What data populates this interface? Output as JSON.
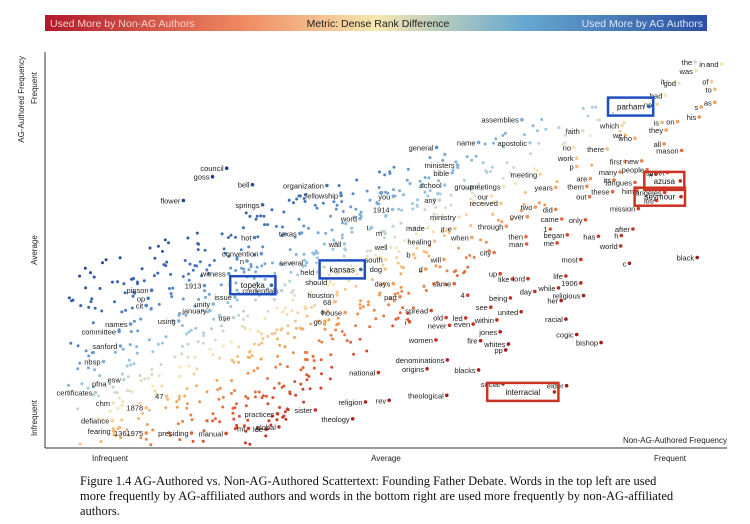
{
  "legend_bar": {
    "left_label": "Used More by Non-AG Authors",
    "center_label": "Metric: Dense Rank Difference",
    "right_label": "Used More by AG Authors",
    "colors": [
      "#b2182b",
      "#ef8a62",
      "#f7e8b0",
      "#67a9cf",
      "#2b4fa3"
    ]
  },
  "caption": "Figure 1.4 AG-Authored vs. Non-AG-Authored Scattertext: Founding Father Debate. Words in the top left are used more frequently by AG-affiliated authors and words in the bottom right are used more frequently by non-AG-affiliated authors.",
  "chart_data": {
    "type": "scatter",
    "xlabel": "Non-AG-Authored Frequency",
    "ylabel": "AG-Authored Frequency",
    "x_ticks": [
      "Infrequent",
      "Average",
      "Frequent"
    ],
    "y_ticks": [
      "Infrequent",
      "Average",
      "Frequent"
    ],
    "xlim": [
      0,
      1
    ],
    "ylim": [
      0,
      1
    ],
    "color_scale": "diverging red (non-AG) to blue (AG)",
    "highlight_colors": {
      "ag": "#1f4fbf",
      "non_ag": "#cc3322"
    },
    "highlighted_terms": [
      {
        "term": "parham",
        "x": 0.888,
        "y": 0.879,
        "side": "ag"
      },
      {
        "term": "kansas",
        "x": 0.462,
        "y": 0.456,
        "side": "ag"
      },
      {
        "term": "topeka",
        "x": 0.33,
        "y": 0.415,
        "side": "ag"
      },
      {
        "term": "azusa",
        "x": 0.934,
        "y": 0.686,
        "side": "non_ag"
      },
      {
        "term": "seymour",
        "x": 0.935,
        "y": 0.645,
        "side": "non_ag"
      },
      {
        "term": "interracial",
        "x": 0.748,
        "y": 0.138,
        "side": "non_ag"
      }
    ],
    "terms": [
      {
        "term": "the",
        "x": 0.956,
        "y": 0.995
      },
      {
        "term": "in",
        "x": 0.975,
        "y": 0.99
      },
      {
        "term": "and",
        "x": 0.995,
        "y": 0.99
      },
      {
        "term": "was",
        "x": 0.957,
        "y": 0.972
      },
      {
        "term": "it",
        "x": 0.915,
        "y": 0.944
      },
      {
        "term": "god",
        "x": 0.932,
        "y": 0.94
      },
      {
        "term": "of",
        "x": 0.98,
        "y": 0.944
      },
      {
        "term": "to",
        "x": 0.985,
        "y": 0.924
      },
      {
        "term": "had",
        "x": 0.912,
        "y": 0.908
      },
      {
        "term": "not",
        "x": 0.9,
        "y": 0.885
      },
      {
        "term": "s",
        "x": 0.965,
        "y": 0.878
      },
      {
        "term": "as",
        "x": 0.985,
        "y": 0.89
      },
      {
        "term": "his",
        "x": 0.962,
        "y": 0.852
      },
      {
        "term": "is",
        "x": 0.907,
        "y": 0.838
      },
      {
        "term": "on",
        "x": 0.93,
        "y": 0.84
      },
      {
        "term": "which",
        "x": 0.848,
        "y": 0.83
      },
      {
        "term": "they",
        "x": 0.913,
        "y": 0.818
      },
      {
        "term": "we",
        "x": 0.853,
        "y": 0.805
      },
      {
        "term": "who",
        "x": 0.867,
        "y": 0.797
      },
      {
        "term": "all",
        "x": 0.91,
        "y": 0.782
      },
      {
        "term": "assemblies",
        "x": 0.7,
        "y": 0.845
      },
      {
        "term": "faith",
        "x": 0.79,
        "y": 0.816
      },
      {
        "term": "name",
        "x": 0.636,
        "y": 0.786
      },
      {
        "term": "apostolic",
        "x": 0.712,
        "y": 0.785
      },
      {
        "term": "general",
        "x": 0.574,
        "y": 0.773
      },
      {
        "term": "no",
        "x": 0.777,
        "y": 0.773
      },
      {
        "term": "there",
        "x": 0.826,
        "y": 0.769
      },
      {
        "term": "mason",
        "x": 0.936,
        "y": 0.765
      },
      {
        "term": "work",
        "x": 0.781,
        "y": 0.745
      },
      {
        "term": "first",
        "x": 0.852,
        "y": 0.737
      },
      {
        "term": "new",
        "x": 0.877,
        "y": 0.738
      },
      {
        "term": "ministers",
        "x": 0.605,
        "y": 0.727
      },
      {
        "term": "p",
        "x": 0.781,
        "y": 0.723
      },
      {
        "term": "#",
        "x": 0.898,
        "y": 0.703
      },
      {
        "term": "many",
        "x": 0.845,
        "y": 0.709
      },
      {
        "term": "people",
        "x": 0.885,
        "y": 0.715
      },
      {
        "term": "bible",
        "x": 0.597,
        "y": 0.707
      },
      {
        "term": "meeting",
        "x": 0.727,
        "y": 0.703
      },
      {
        "term": "are",
        "x": 0.801,
        "y": 0.692
      },
      {
        "term": "its",
        "x": 0.836,
        "y": 0.688
      },
      {
        "term": "street",
        "x": 0.915,
        "y": 0.708
      },
      {
        "term": "council",
        "x": 0.264,
        "y": 0.719
      },
      {
        "term": "goss",
        "x": 0.243,
        "y": 0.697
      },
      {
        "term": "bell",
        "x": 0.302,
        "y": 0.676
      },
      {
        "term": "organization",
        "x": 0.412,
        "y": 0.674
      },
      {
        "term": "school",
        "x": 0.586,
        "y": 0.675
      },
      {
        "term": "group",
        "x": 0.633,
        "y": 0.671
      },
      {
        "term": "meetings",
        "x": 0.673,
        "y": 0.671
      },
      {
        "term": "years",
        "x": 0.75,
        "y": 0.669
      },
      {
        "term": "them",
        "x": 0.796,
        "y": 0.672
      },
      {
        "term": "tongues",
        "x": 0.867,
        "y": 0.682
      },
      {
        "term": "these",
        "x": 0.834,
        "y": 0.658
      },
      {
        "term": "him",
        "x": 0.87,
        "y": 0.66
      },
      {
        "term": "angeles",
        "x": 0.911,
        "y": 0.656
      },
      {
        "term": "fellowship",
        "x": 0.433,
        "y": 0.648
      },
      {
        "term": "you",
        "x": 0.51,
        "y": 0.646
      },
      {
        "term": "our",
        "x": 0.655,
        "y": 0.646
      },
      {
        "term": "out",
        "x": 0.8,
        "y": 0.645
      },
      {
        "term": "los",
        "x": 0.899,
        "y": 0.635
      },
      {
        "term": "flower",
        "x": 0.2,
        "y": 0.635
      },
      {
        "term": "springs",
        "x": 0.317,
        "y": 0.624
      },
      {
        "term": "any",
        "x": 0.578,
        "y": 0.636
      },
      {
        "term": "received",
        "x": 0.669,
        "y": 0.628
      },
      {
        "term": "two",
        "x": 0.72,
        "y": 0.618
      },
      {
        "term": "did",
        "x": 0.75,
        "y": 0.612
      },
      {
        "term": "mission",
        "x": 0.872,
        "y": 0.614
      },
      {
        "term": "1914",
        "x": 0.509,
        "y": 0.612
      },
      {
        "term": "word",
        "x": 0.461,
        "y": 0.588
      },
      {
        "term": "ministry",
        "x": 0.607,
        "y": 0.592
      },
      {
        "term": "over",
        "x": 0.708,
        "y": 0.593
      },
      {
        "term": "came",
        "x": 0.759,
        "y": 0.587
      },
      {
        "term": "only",
        "x": 0.794,
        "y": 0.585
      },
      {
        "term": "t",
        "x": 0.478,
        "y": 0.565
      },
      {
        "term": "made",
        "x": 0.561,
        "y": 0.564
      },
      {
        "term": "if",
        "x": 0.59,
        "y": 0.56
      },
      {
        "term": "e",
        "x": 0.601,
        "y": 0.562
      },
      {
        "term": "through",
        "x": 0.677,
        "y": 0.568
      },
      {
        "term": "1",
        "x": 0.742,
        "y": 0.561
      },
      {
        "term": "after",
        "x": 0.864,
        "y": 0.561
      },
      {
        "term": "hot",
        "x": 0.305,
        "y": 0.539
      },
      {
        "term": "texas",
        "x": 0.372,
        "y": 0.549
      },
      {
        "term": "m",
        "x": 0.498,
        "y": 0.55
      },
      {
        "term": "healing",
        "x": 0.571,
        "y": 0.529
      },
      {
        "term": "when",
        "x": 0.626,
        "y": 0.539
      },
      {
        "term": "then",
        "x": 0.706,
        "y": 0.541
      },
      {
        "term": "began",
        "x": 0.767,
        "y": 0.546
      },
      {
        "term": "has",
        "x": 0.813,
        "y": 0.542
      },
      {
        "term": "h",
        "x": 0.847,
        "y": 0.544
      },
      {
        "term": "wall",
        "x": 0.438,
        "y": 0.522
      },
      {
        "term": "well",
        "x": 0.506,
        "y": 0.514
      },
      {
        "term": "man",
        "x": 0.707,
        "y": 0.522
      },
      {
        "term": "me",
        "x": 0.752,
        "y": 0.525
      },
      {
        "term": "world",
        "x": 0.846,
        "y": 0.517
      },
      {
        "term": "convention",
        "x": 0.315,
        "y": 0.497
      },
      {
        "term": "b",
        "x": 0.54,
        "y": 0.495
      },
      {
        "term": "city",
        "x": 0.659,
        "y": 0.5
      },
      {
        "term": "will",
        "x": 0.585,
        "y": 0.482
      },
      {
        "term": "most",
        "x": 0.787,
        "y": 0.482
      },
      {
        "term": "black",
        "x": 0.959,
        "y": 0.487
      },
      {
        "term": "n",
        "x": 0.294,
        "y": 0.478
      },
      {
        "term": "several",
        "x": 0.382,
        "y": 0.474
      },
      {
        "term": "south",
        "x": 0.499,
        "y": 0.482
      },
      {
        "term": "c",
        "x": 0.859,
        "y": 0.472
      },
      {
        "term": "witness",
        "x": 0.267,
        "y": 0.445
      },
      {
        "term": "held",
        "x": 0.398,
        "y": 0.449
      },
      {
        "term": "dog",
        "x": 0.498,
        "y": 0.457
      },
      {
        "term": "d",
        "x": 0.558,
        "y": 0.457
      },
      {
        "term": "up",
        "x": 0.668,
        "y": 0.445
      },
      {
        "term": "life",
        "x": 0.765,
        "y": 0.439
      },
      {
        "term": "1913",
        "x": 0.231,
        "y": 0.414
      },
      {
        "term": "should",
        "x": 0.417,
        "y": 0.424
      },
      {
        "term": "days",
        "x": 0.51,
        "y": 0.419
      },
      {
        "term": "same",
        "x": 0.6,
        "y": 0.419
      },
      {
        "term": "like",
        "x": 0.686,
        "y": 0.431
      },
      {
        "term": "lord",
        "x": 0.709,
        "y": 0.432
      },
      {
        "term": "1906",
        "x": 0.787,
        "y": 0.421
      },
      {
        "term": "credentials",
        "x": 0.345,
        "y": 0.401
      },
      {
        "term": "pinson",
        "x": 0.153,
        "y": 0.402
      },
      {
        "term": "while",
        "x": 0.754,
        "y": 0.408
      },
      {
        "term": "day",
        "x": 0.719,
        "y": 0.399
      },
      {
        "term": "houston",
        "x": 0.427,
        "y": 0.39
      },
      {
        "term": "part",
        "x": 0.52,
        "y": 0.385
      },
      {
        "term": "4",
        "x": 0.62,
        "y": 0.389
      },
      {
        "term": "being",
        "x": 0.683,
        "y": 0.382
      },
      {
        "term": "religious",
        "x": 0.791,
        "y": 0.388
      },
      {
        "term": "op",
        "x": 0.148,
        "y": 0.381
      },
      {
        "term": "issue",
        "x": 0.276,
        "y": 0.384
      },
      {
        "term": "68",
        "x": 0.423,
        "y": 0.372
      },
      {
        "term": "her",
        "x": 0.758,
        "y": 0.375
      },
      {
        "term": "cit",
        "x": 0.145,
        "y": 0.362
      },
      {
        "term": "unity",
        "x": 0.244,
        "y": 0.366
      },
      {
        "term": "see",
        "x": 0.654,
        "y": 0.358
      },
      {
        "term": "united",
        "x": 0.699,
        "y": 0.346
      },
      {
        "term": "january",
        "x": 0.239,
        "y": 0.349
      },
      {
        "term": "house",
        "x": 0.439,
        "y": 0.344
      },
      {
        "term": "spread",
        "x": 0.566,
        "y": 0.349
      },
      {
        "term": "led",
        "x": 0.617,
        "y": 0.33
      },
      {
        "term": "o",
        "x": 0.413,
        "y": 0.347
      },
      {
        "term": "use",
        "x": 0.274,
        "y": 0.331
      },
      {
        "term": "old",
        "x": 0.588,
        "y": 0.331
      },
      {
        "term": "within",
        "x": 0.663,
        "y": 0.325
      },
      {
        "term": "racial",
        "x": 0.765,
        "y": 0.327
      },
      {
        "term": "using",
        "x": 0.193,
        "y": 0.322
      },
      {
        "term": "names",
        "x": 0.122,
        "y": 0.314
      },
      {
        "term": "go",
        "x": 0.409,
        "y": 0.321
      },
      {
        "term": "i",
        "x": 0.534,
        "y": 0.32
      },
      {
        "term": "never",
        "x": 0.593,
        "y": 0.311
      },
      {
        "term": "even",
        "x": 0.628,
        "y": 0.314
      },
      {
        "term": "committee",
        "x": 0.105,
        "y": 0.295
      },
      {
        "term": "cogic",
        "x": 0.781,
        "y": 0.287
      },
      {
        "term": "jones",
        "x": 0.668,
        "y": 0.294
      },
      {
        "term": "fire",
        "x": 0.639,
        "y": 0.271
      },
      {
        "term": "women",
        "x": 0.573,
        "y": 0.273
      },
      {
        "term": "bishop",
        "x": 0.817,
        "y": 0.266
      },
      {
        "term": "sanford",
        "x": 0.107,
        "y": 0.257
      },
      {
        "term": "pp",
        "x": 0.676,
        "y": 0.247
      },
      {
        "term": "whites",
        "x": 0.68,
        "y": 0.262
      },
      {
        "term": "nbsp",
        "x": 0.082,
        "y": 0.217
      },
      {
        "term": "denominations",
        "x": 0.59,
        "y": 0.221
      },
      {
        "term": "origins",
        "x": 0.56,
        "y": 0.198
      },
      {
        "term": "national",
        "x": 0.488,
        "y": 0.188
      },
      {
        "term": "blacks",
        "x": 0.636,
        "y": 0.195
      },
      {
        "term": "elder",
        "x": 0.766,
        "y": 0.154
      },
      {
        "term": "social",
        "x": 0.672,
        "y": 0.159
      },
      {
        "term": "pfna",
        "x": 0.091,
        "y": 0.16
      },
      {
        "term": "esw",
        "x": 0.112,
        "y": 0.17
      },
      {
        "term": "47",
        "x": 0.175,
        "y": 0.127
      },
      {
        "term": "certificates",
        "x": 0.07,
        "y": 0.136
      },
      {
        "term": "theological",
        "x": 0.589,
        "y": 0.129
      },
      {
        "term": "rev",
        "x": 0.504,
        "y": 0.116
      },
      {
        "term": "chm",
        "x": 0.096,
        "y": 0.109
      },
      {
        "term": "religion",
        "x": 0.469,
        "y": 0.112
      },
      {
        "term": "1878",
        "x": 0.145,
        "y": 0.097
      },
      {
        "term": "sister",
        "x": 0.395,
        "y": 0.091
      },
      {
        "term": "practices",
        "x": 0.339,
        "y": 0.081
      },
      {
        "term": "theology",
        "x": 0.45,
        "y": 0.068
      },
      {
        "term": "defiance",
        "x": 0.095,
        "y": 0.063
      },
      {
        "term": "mt",
        "x": 0.296,
        "y": 0.043
      },
      {
        "term": "global",
        "x": 0.341,
        "y": 0.047
      },
      {
        "term": "lee",
        "x": 0.322,
        "y": 0.041
      },
      {
        "term": "fearing",
        "x": 0.097,
        "y": 0.036
      },
      {
        "term": "1361975",
        "x": 0.145,
        "y": 0.031
      },
      {
        "term": "presiding",
        "x": 0.212,
        "y": 0.031
      },
      {
        "term": "manual",
        "x": 0.263,
        "y": 0.03
      }
    ]
  }
}
